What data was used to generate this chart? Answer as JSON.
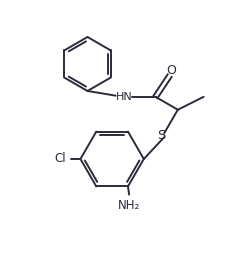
{
  "background_color": "#ffffff",
  "bond_color": "#2b2b3b",
  "label_color": "#2b2b3b",
  "figsize": [
    2.36,
    2.57
  ],
  "dpi": 100,
  "xlim": [
    0,
    10
  ],
  "ylim": [
    0,
    10.8
  ]
}
